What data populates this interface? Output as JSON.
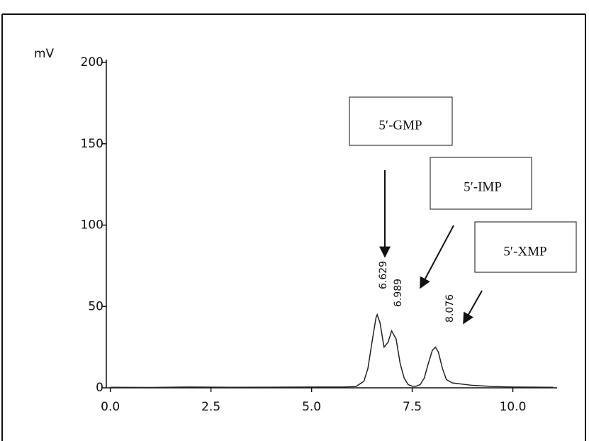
{
  "chart_data": {
    "type": "line",
    "y_label": "mV",
    "x": [
      0,
      1,
      2,
      3,
      4,
      5,
      5.8,
      6.1,
      6.3,
      6.4,
      6.5,
      6.6,
      6.629,
      6.7,
      6.8,
      6.9,
      6.989,
      7.1,
      7.2,
      7.3,
      7.4,
      7.5,
      7.6,
      7.7,
      7.8,
      7.9,
      8.0,
      8.076,
      8.15,
      8.25,
      8.35,
      8.5,
      9,
      9.5,
      10,
      11
    ],
    "values": [
      0.3,
      0.2,
      0.5,
      0.3,
      0.4,
      0.5,
      0.5,
      0.8,
      4,
      12,
      28,
      43,
      45,
      40,
      25,
      28,
      35,
      30,
      15,
      6,
      2,
      1,
      1,
      2,
      6,
      15,
      23,
      25,
      22,
      12,
      5,
      3,
      1.5,
      0.8,
      0.5,
      0.3
    ],
    "color": "#222222",
    "xlim": [
      -0.1,
      11.1
    ],
    "ylim": [
      0,
      200
    ],
    "xticks": [
      {
        "value": 0,
        "label": "0.0"
      },
      {
        "value": 2.5,
        "label": "2.5"
      },
      {
        "value": 5,
        "label": "5.0"
      },
      {
        "value": 7.5,
        "label": "7.5"
      },
      {
        "value": 10,
        "label": "10.0"
      }
    ],
    "yticks": [
      0,
      50,
      100,
      150,
      200
    ],
    "peak_labels": [
      "6.629",
      "6.989",
      "8.076"
    ],
    "annotations": [
      "5′-GMP",
      "5′-IMP",
      "5′-XMP"
    ]
  }
}
